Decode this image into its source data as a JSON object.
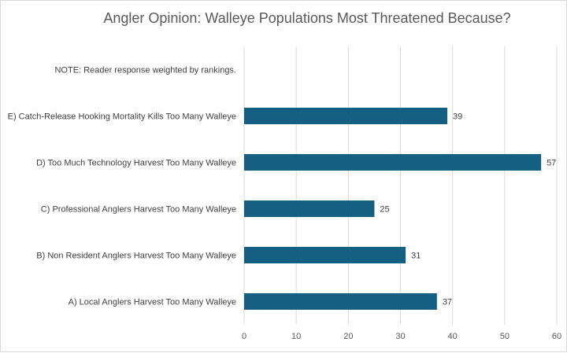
{
  "chart_data": {
    "type": "bar",
    "orientation": "horizontal",
    "title": "Angler Opinion: Walleye Populations Most Threatened Because?",
    "categories": [
      "NOTE: Reader response weighted by rankings.",
      "E) Catch-Release Hooking Mortality Kills Too Many Walleye",
      "D) Too Much Technology Harvest Too Many Walleye",
      "C) Professional Anglers Harvest Too Many Walleye",
      "B) Non Resident Anglers Harvest Too Many Walleye",
      "A) Local Anglers Harvest Too Many Walleye"
    ],
    "values": [
      null,
      39,
      57,
      25,
      31,
      37
    ],
    "xlim": [
      0,
      60
    ],
    "xticks": [
      0,
      10,
      20,
      30,
      40,
      50,
      60
    ],
    "xlabel": "",
    "ylabel": "",
    "grid": "vertical",
    "legend": "none",
    "colors": {
      "bar": "#156082"
    }
  }
}
